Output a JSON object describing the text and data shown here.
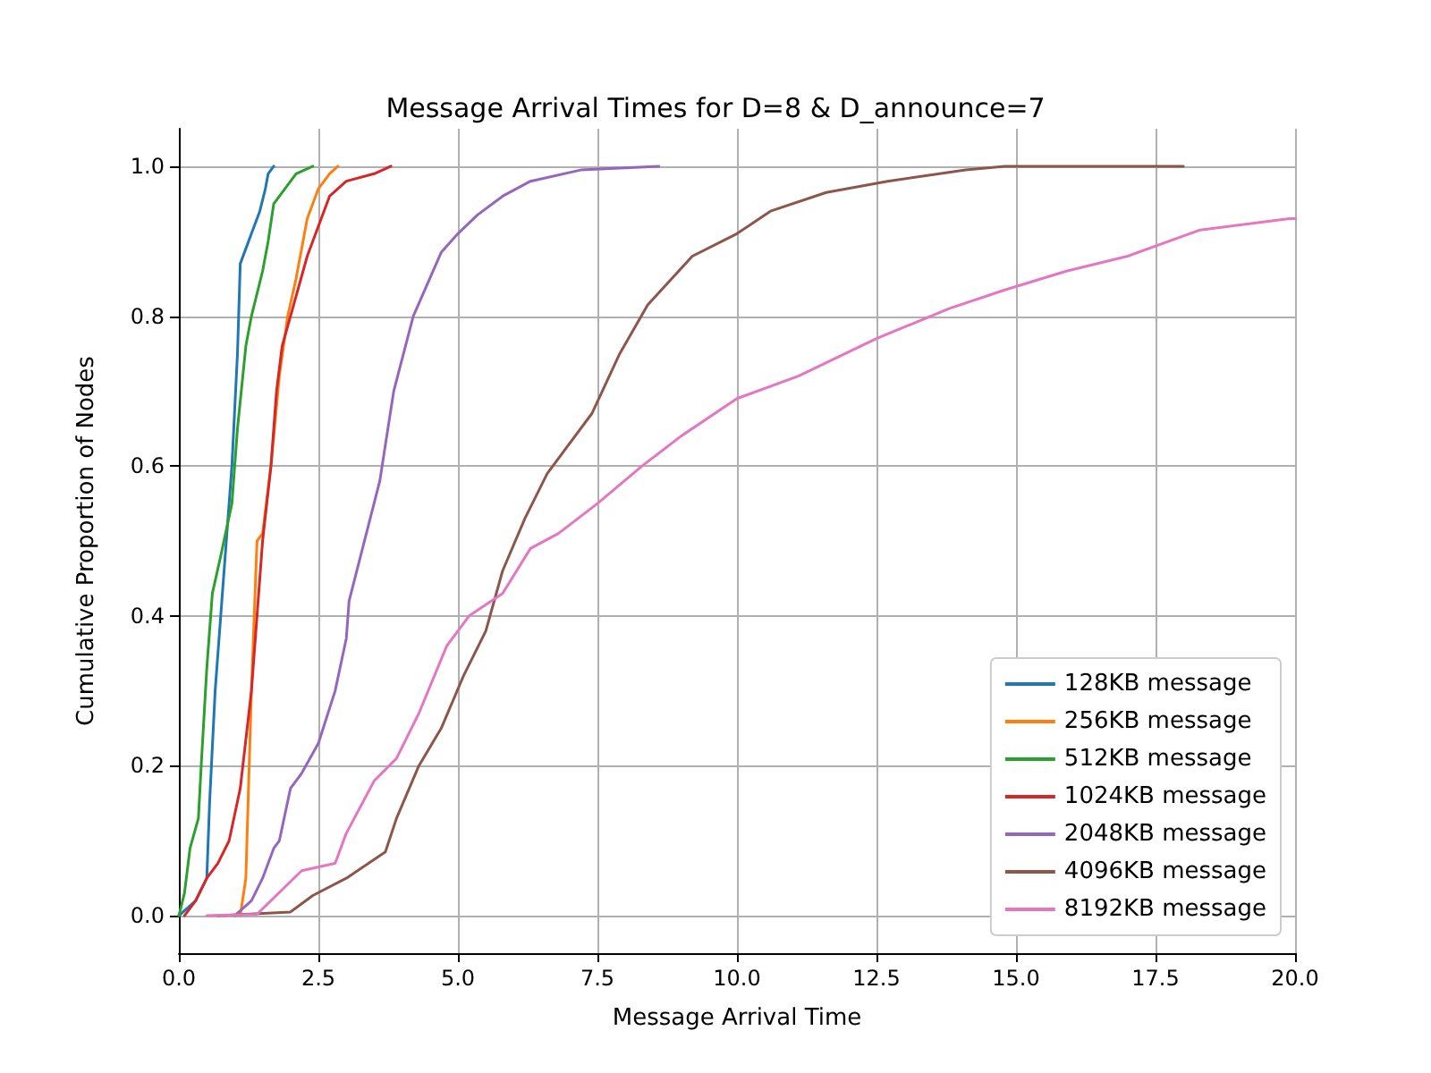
{
  "chart_data": {
    "type": "line",
    "title": "Message Arrival Times for D=8 & D_announce=7",
    "xlabel": "Message Arrival Time",
    "ylabel": "Cumulative Proportion of Nodes",
    "xlim": [
      0,
      20
    ],
    "xticks": [
      {
        "value": 0,
        "label": "0.0"
      },
      {
        "value": 2.5,
        "label": "2.5"
      },
      {
        "value": 5,
        "label": "5.0"
      },
      {
        "value": 7.5,
        "label": "7.5"
      },
      {
        "value": 10,
        "label": "10.0"
      },
      {
        "value": 12.5,
        "label": "12.5"
      },
      {
        "value": 15,
        "label": "15.0"
      },
      {
        "value": 17.5,
        "label": "17.5"
      },
      {
        "value": 20,
        "label": "20.0"
      }
    ],
    "ylim": [
      -0.05,
      1.05
    ],
    "yticks": [
      {
        "value": 0,
        "label": "0.0"
      },
      {
        "value": 0.2,
        "label": "0.2"
      },
      {
        "value": 0.4,
        "label": "0.4"
      },
      {
        "value": 0.6,
        "label": "0.6"
      },
      {
        "value": 0.8,
        "label": "0.8"
      },
      {
        "value": 1,
        "label": "1.0"
      }
    ],
    "grid": true,
    "legend": "bottom right",
    "marker": "none",
    "line_style": "solid",
    "series": [
      {
        "name": "128KB message",
        "color": "#1f77b4",
        "x": [
          0,
          0.3,
          0.5,
          0.55,
          0.65,
          0.8,
          0.95,
          1.05,
          1.1,
          1.2,
          1.3,
          1.45,
          1.55,
          1.6,
          1.7
        ],
        "values": [
          0,
          0.02,
          0.05,
          0.15,
          0.3,
          0.45,
          0.6,
          0.75,
          0.87,
          0.89,
          0.91,
          0.94,
          0.97,
          0.99,
          1
        ]
      },
      {
        "name": "256KB message",
        "color": "#ff7f0e",
        "x": [
          1.1,
          1.2,
          1.3,
          1.4,
          1.5,
          1.65,
          1.8,
          1.95,
          2.1,
          2.3,
          2.5,
          2.7,
          2.85
        ],
        "values": [
          0,
          0.05,
          0.3,
          0.5,
          0.51,
          0.6,
          0.72,
          0.8,
          0.85,
          0.93,
          0.97,
          0.99,
          1
        ]
      },
      {
        "name": "512KB message",
        "color": "#2ca02c",
        "x": [
          0,
          0.1,
          0.2,
          0.35,
          0.4,
          0.5,
          0.6,
          0.75,
          0.95,
          1.05,
          1.2,
          1.3,
          1.5,
          1.6,
          1.7,
          1.9,
          2.1,
          2.4
        ],
        "values": [
          0,
          0.03,
          0.09,
          0.13,
          0.2,
          0.33,
          0.43,
          0.48,
          0.55,
          0.65,
          0.76,
          0.8,
          0.86,
          0.9,
          0.95,
          0.97,
          0.99,
          1
        ]
      },
      {
        "name": "1024KB message",
        "color": "#d62728",
        "x": [
          0.1,
          0.3,
          0.5,
          0.7,
          0.9,
          1.1,
          1.3,
          1.4,
          1.5,
          1.65,
          1.75,
          1.85,
          2,
          2.3,
          2.5,
          2.7,
          3,
          3.5,
          3.8
        ],
        "values": [
          0,
          0.02,
          0.05,
          0.07,
          0.1,
          0.17,
          0.3,
          0.4,
          0.5,
          0.6,
          0.7,
          0.76,
          0.8,
          0.88,
          0.92,
          0.96,
          0.98,
          0.99,
          1
        ]
      },
      {
        "name": "2048KB message",
        "color": "#9467bd",
        "x": [
          1,
          1.3,
          1.5,
          1.7,
          1.8,
          2,
          2.2,
          2.5,
          2.8,
          3,
          3.05,
          3.6,
          3.85,
          4.2,
          4.7,
          5,
          5.35,
          5.8,
          6.3,
          7.2,
          8.6
        ],
        "values": [
          0,
          0.02,
          0.05,
          0.09,
          0.1,
          0.17,
          0.19,
          0.23,
          0.3,
          0.37,
          0.42,
          0.58,
          0.7,
          0.8,
          0.885,
          0.91,
          0.935,
          0.96,
          0.98,
          0.995,
          1
        ]
      },
      {
        "name": "4096KB message",
        "color": "#8c564b",
        "x": [
          0.7,
          2,
          2.4,
          3,
          3.7,
          3.9,
          4.3,
          4.7,
          5.1,
          5.5,
          5.8,
          6.2,
          6.6,
          7.4,
          7.9,
          8.4,
          9.2,
          10,
          10.6,
          11.6,
          12.7,
          14.1,
          14.8,
          18
        ],
        "values": [
          0,
          0.005,
          0.027,
          0.05,
          0.085,
          0.13,
          0.2,
          0.25,
          0.32,
          0.38,
          0.46,
          0.53,
          0.59,
          0.67,
          0.75,
          0.815,
          0.88,
          0.91,
          0.94,
          0.965,
          0.98,
          0.995,
          1,
          1
        ]
      },
      {
        "name": "8192KB message",
        "color": "#e377c2",
        "x": [
          0.5,
          1.4,
          2.2,
          2.8,
          3,
          3.5,
          3.9,
          4.3,
          4.8,
          5.2,
          5.8,
          6.3,
          6.8,
          7.5,
          8.3,
          9,
          10,
          11.1,
          12.5,
          13.8,
          14.8,
          15.9,
          17,
          18.3,
          19.9,
          20
        ],
        "values": [
          0,
          0.002,
          0.06,
          0.07,
          0.11,
          0.18,
          0.21,
          0.27,
          0.36,
          0.4,
          0.43,
          0.49,
          0.51,
          0.55,
          0.6,
          0.64,
          0.69,
          0.72,
          0.77,
          0.81,
          0.835,
          0.86,
          0.88,
          0.915,
          0.93,
          0.93
        ]
      }
    ]
  }
}
